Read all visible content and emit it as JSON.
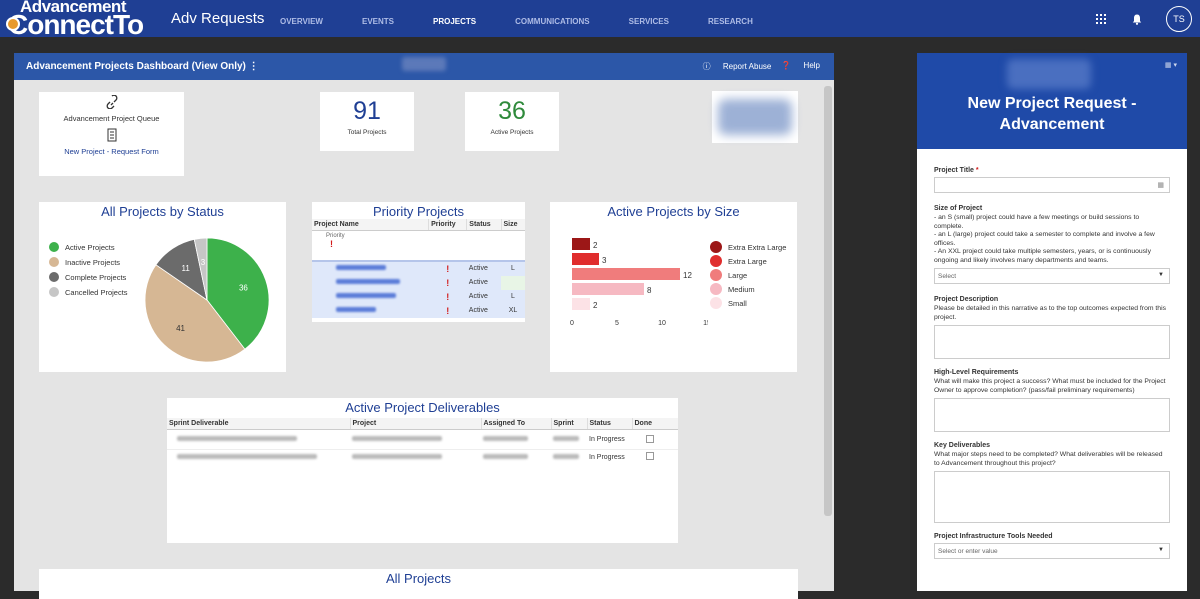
{
  "header": {
    "logo_line1": "Advancement",
    "logo_line2": "ConnectTo",
    "app_title": "Adv Requests",
    "nav": [
      "OVERVIEW",
      "EVENTS",
      "PROJECTS",
      "COMMUNICATIONS",
      "SERVICES",
      "RESEARCH"
    ],
    "active_nav": "PROJECTS",
    "avatar_initials": "TS"
  },
  "dashboard": {
    "title": "Advancement Projects Dashboard (View Only) ⋮",
    "report_abuse": "Report Abuse",
    "help": "Help",
    "queue_label": "Advancement Project Queue",
    "form_link": "New Project - Request Form",
    "total_projects": "91",
    "total_projects_label": "Total Projects",
    "active_projects": "36",
    "active_projects_label": "Active Projects",
    "accent": "#1f3f94"
  },
  "chart_data": [
    {
      "type": "pie",
      "title": "All Projects by Status",
      "labels": [
        "Active Projects",
        "Inactive Projects",
        "Complete Projects",
        "Cancelled Projects"
      ],
      "values": [
        36,
        41,
        11,
        3
      ],
      "colors": [
        "#3db14b",
        "#d6b794",
        "#6b6b6b",
        "#c6c6c6"
      ],
      "legend": "left"
    },
    {
      "type": "bar",
      "orientation": "horizontal",
      "title": "Active Projects by Size",
      "categories": [
        "Extra Extra Large",
        "Extra Large",
        "Large",
        "Medium",
        "Small"
      ],
      "values": [
        2,
        3,
        12,
        8,
        2
      ],
      "colors": [
        "#9c1717",
        "#e02d2d",
        "#f07c7c",
        "#f6b9c2",
        "#fce2e6"
      ],
      "xticks": [
        "0",
        "5",
        "10",
        "15"
      ],
      "xlim": [
        0,
        15
      ],
      "legend": "right"
    }
  ],
  "priority": {
    "title": "Priority Projects",
    "columns": [
      "Project Name",
      "Priority",
      "Status",
      "Size"
    ],
    "subhead": "Priority",
    "rows": [
      {
        "priority": "!",
        "status": "Active",
        "size": "L"
      },
      {
        "priority": "!",
        "status": "Active",
        "size": ""
      },
      {
        "priority": "!",
        "status": "Active",
        "size": "L"
      },
      {
        "priority": "!",
        "status": "Active",
        "size": "XL"
      }
    ]
  },
  "deliverables": {
    "title": "Active Project Deliverables",
    "columns": [
      "Sprint Deliverable",
      "Project",
      "Assigned To",
      "Sprint",
      "Status",
      "Done"
    ],
    "rows": [
      {
        "status": "In Progress"
      },
      {
        "status": "In Progress"
      }
    ]
  },
  "all_projects": {
    "title": "All Projects"
  },
  "form": {
    "title": "New Project Request - Advancement",
    "project_title_label": "Project Title",
    "required_mark": "*",
    "size_label": "Size of Project",
    "size_desc": "- an S (small) project could have a few meetings or build sessions to complete.\n- an L (large) project could take a semester to complete and involve a few offices.\n- An XXL project could take multiple semesters, years, or is continuously ongoing and likely involves many departments and teams.",
    "size_placeholder": "Select",
    "desc_label": "Project Description",
    "desc_help": "Please be detailed in this narrative as to the top outcomes expected from this project.",
    "req_label": "High-Level Requirements",
    "req_help": "What will make this project a success? What must be included for the Project Owner to approve completion? (pass/fail preliminary requirements)",
    "deliv_label": "Key Deliverables",
    "deliv_help": "What major steps need to be completed? What deliverables will be released to Advancement throughout this project?",
    "tools_label": "Project Infrastructure Tools Needed",
    "tools_placeholder": "Select or enter value"
  }
}
